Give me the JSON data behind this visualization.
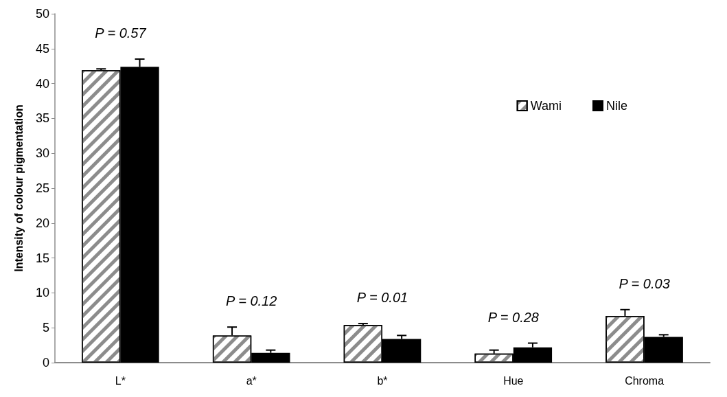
{
  "chart_data": {
    "type": "bar",
    "ylabel": "Intensity of colour pigmentation",
    "categories": [
      "L*",
      "a*",
      "b*",
      "Hue",
      "Chroma"
    ],
    "series": [
      {
        "name": "Wami",
        "color": "#ffffff",
        "values": [
          41.9,
          3.9,
          5.4,
          1.3,
          6.7
        ],
        "errors": [
          0.2,
          1.2,
          0.2,
          0.5,
          0.9
        ]
      },
      {
        "name": "Nile",
        "color": "#000000",
        "values": [
          42.4,
          1.4,
          3.4,
          2.2,
          3.7
        ],
        "errors": [
          1.1,
          0.4,
          0.5,
          0.6,
          0.3
        ]
      }
    ],
    "ylim": [
      0,
      50
    ],
    "yticks": [
      0,
      5,
      10,
      15,
      20,
      25,
      30,
      35,
      40,
      45,
      50
    ],
    "grid": false,
    "legend": "top right",
    "annotations": [
      "P = 0.57",
      "P = 0.12",
      "P = 0.01",
      "P = 0.28",
      "P = 0.03"
    ]
  }
}
